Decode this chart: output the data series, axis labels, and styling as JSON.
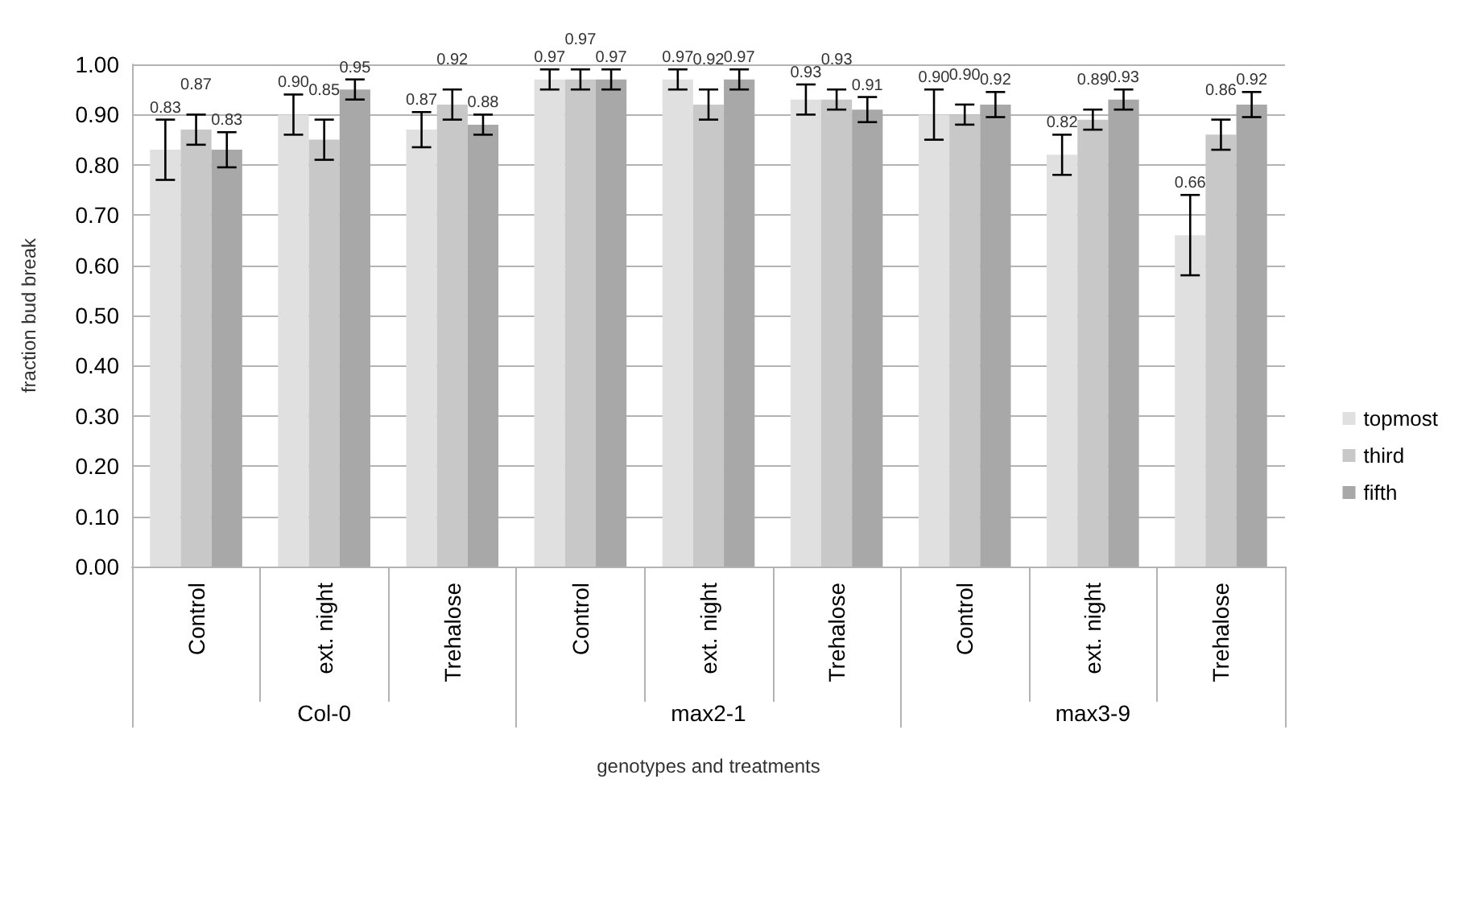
{
  "chart_data": {
    "type": "bar",
    "xlabel": "genotypes and treatments",
    "ylabel": "fraction bud break",
    "categories": [
      "Control",
      "ext. night",
      "Trehalose",
      "Control",
      "ext. night",
      "Trehalose",
      "Control",
      "ext. night",
      "Trehalose"
    ],
    "annotations": [
      "Col-0",
      "max2-1",
      "max3-9"
    ],
    "series": [
      {
        "name": "topmost",
        "color": "#e0e0e0",
        "values": [
          0.83,
          0.9,
          0.87,
          0.97,
          0.97,
          0.93,
          0.9,
          0.82,
          0.66
        ],
        "value_labels": [
          "0.83",
          "0.90",
          "0.87",
          "0.97",
          "0.97",
          "0.93",
          "0.90",
          "0.82",
          "0.66"
        ],
        "errors": [
          0.06,
          0.04,
          0.035,
          0.02,
          0.02,
          0.03,
          0.05,
          0.04,
          0.08
        ]
      },
      {
        "name": "third",
        "color": "#c8c8c8",
        "values": [
          0.87,
          0.85,
          0.92,
          0.97,
          0.92,
          0.93,
          0.9,
          0.89,
          0.86
        ],
        "value_labels": [
          "0.87",
          "0.85",
          "0.92",
          "0.97",
          "0.92",
          "0.93",
          "0.90",
          "0.89",
          "0.86"
        ],
        "errors": [
          0.03,
          0.04,
          0.03,
          0.02,
          0.03,
          0.02,
          0.02,
          0.02,
          0.03
        ]
      },
      {
        "name": "fifth",
        "color": "#a8a8a8",
        "values": [
          0.83,
          0.95,
          0.88,
          0.97,
          0.97,
          0.91,
          0.92,
          0.93,
          0.92
        ],
        "value_labels": [
          "0.83",
          "0.95",
          "0.88",
          "0.97",
          "0.97",
          "0.91",
          "0.92",
          "0.93",
          "0.92"
        ],
        "errors": [
          0.035,
          0.02,
          0.02,
          0.02,
          0.02,
          0.025,
          0.025,
          0.02,
          0.025
        ]
      }
    ],
    "ylim": [
      0,
      1
    ],
    "yticks": [
      {
        "value": 0,
        "label": "0.00"
      },
      {
        "value": 0.1,
        "label": "0.10"
      },
      {
        "value": 0.2,
        "label": "0.20"
      },
      {
        "value": 0.3,
        "label": "0.30"
      },
      {
        "value": 0.4,
        "label": "0.40"
      },
      {
        "value": 0.5,
        "label": "0.50"
      },
      {
        "value": 0.6,
        "label": "0.60"
      },
      {
        "value": 0.7,
        "label": "0.70"
      },
      {
        "value": 0.8,
        "label": "0.80"
      },
      {
        "value": 0.9,
        "label": "0.90"
      },
      {
        "value": 1.0,
        "label": "1.00"
      }
    ],
    "grid": "y",
    "legend": "right"
  }
}
